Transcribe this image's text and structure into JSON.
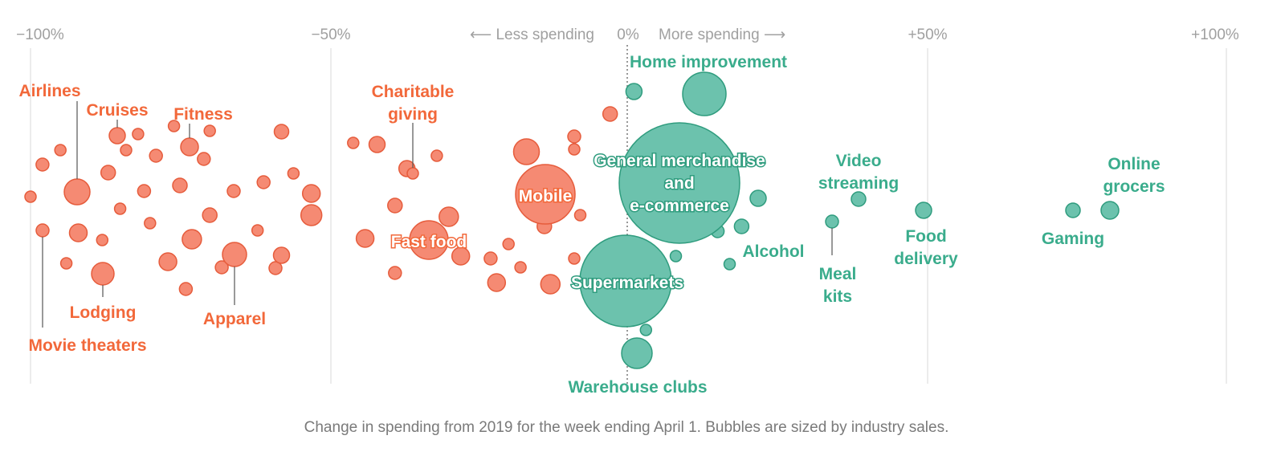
{
  "colors": {
    "decrease": "#f2683a",
    "increase": "#3aac8c",
    "decrease_fill": "#f58a73",
    "increase_fill": "#6cc2ad"
  },
  "chart_data": {
    "type": "scatter",
    "x_label": "",
    "xlim": [
      -100,
      100
    ],
    "x_ticks": [
      {
        "value": -100,
        "label": "−100%"
      },
      {
        "value": -50,
        "label": "−50%"
      },
      {
        "value": 0,
        "label": "0%"
      },
      {
        "value": 50,
        "label": "+50%"
      },
      {
        "value": 100,
        "label": "+100%"
      }
    ],
    "direction_labels": {
      "less": "⟵ Less spending",
      "more": "More spending ⟶"
    },
    "caption": "Change in spending from 2019 for the week ending April 1. Bubbles are sized by industry sales.",
    "labeled": [
      {
        "name": "Airlines",
        "x": -92
      },
      {
        "name": "Cruises",
        "x": -87
      },
      {
        "name": "Fitness",
        "x": -73
      },
      {
        "name": "Lodging",
        "x": -88
      },
      {
        "name": "Apparel",
        "x": -67
      },
      {
        "name": "Movie theaters",
        "x": -98
      },
      {
        "name": "Charitable giving",
        "x": -36
      },
      {
        "name": "Fast food",
        "x": -33
      },
      {
        "name": "Mobile",
        "x": -14
      },
      {
        "name": "Home improvement",
        "x": 13
      },
      {
        "name": "General merchandise and e-commerce",
        "x": 9
      },
      {
        "name": "Supermarkets",
        "x": 0
      },
      {
        "name": "Warehouse clubs",
        "x": 2
      },
      {
        "name": "Alcohol",
        "x": 19
      },
      {
        "name": "Video streaming",
        "x": 39
      },
      {
        "name": "Meal kits",
        "x": 34
      },
      {
        "name": "Food delivery",
        "x": 50
      },
      {
        "name": "Gaming",
        "x": 75
      },
      {
        "name": "Online grocers",
        "x": 81
      }
    ],
    "unlabeled_x": [
      -98,
      -100,
      -95,
      -94,
      -92,
      -88,
      -87,
      -85,
      -84,
      -82,
      -81,
      -80,
      -79,
      -77,
      -76,
      -75,
      -74,
      -73,
      -71,
      -70,
      -70,
      -68,
      -66,
      -62,
      -61,
      -59,
      -58,
      -58,
      -56,
      -53,
      -53,
      -46,
      -44,
      -42,
      -39,
      -39,
      -37,
      -32,
      -30,
      -28,
      -23,
      -22,
      -20,
      -18,
      -17,
      -14,
      -13,
      -9,
      -9,
      -9,
      -8,
      -3,
      1,
      3,
      8,
      19,
      17,
      15
    ]
  }
}
